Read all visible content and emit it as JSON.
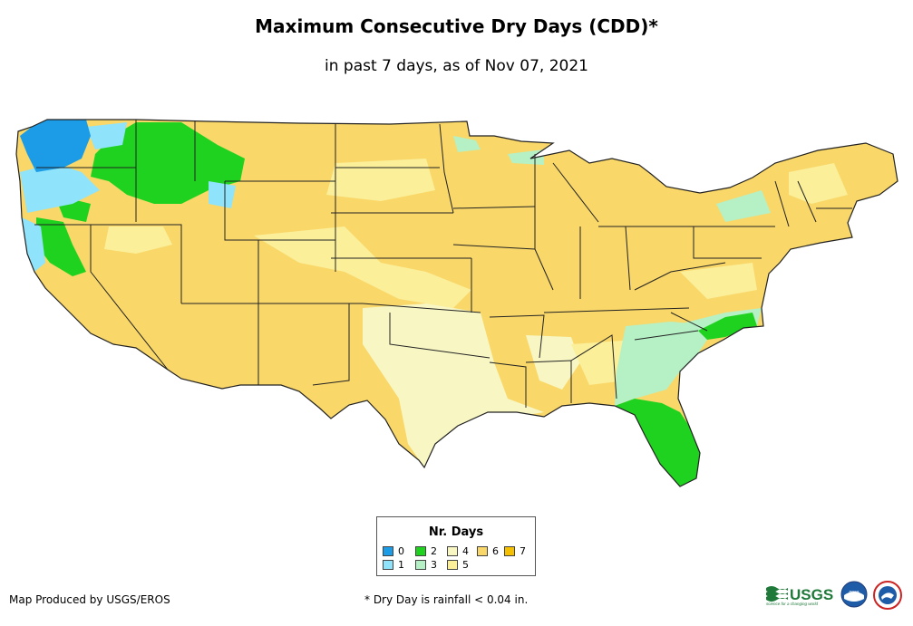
{
  "title": "Maximum Consecutive Dry Days (CDD)*",
  "subtitle": "in past 7 days, as of Nov 07, 2021",
  "legend": {
    "title": "Nr. Days",
    "items": [
      {
        "label": "0",
        "color": "#1c9be6"
      },
      {
        "label": "1",
        "color": "#8fe3fa"
      },
      {
        "label": "2",
        "color": "#1fd21f"
      },
      {
        "label": "3",
        "color": "#b5f1c5"
      },
      {
        "label": "4",
        "color": "#f8f7c4"
      },
      {
        "label": "5",
        "color": "#fbef9a"
      },
      {
        "label": "6",
        "color": "#f9d769"
      },
      {
        "label": "7",
        "color": "#f5c000"
      }
    ]
  },
  "footer": {
    "credit": "Map Produced by USGS/EROS",
    "note": "* Dry Day is rainfall < 0.04 in."
  },
  "logos": {
    "usgs_text": "USGS",
    "usgs_tagline": "science for a changing world",
    "noaa_text": "noaa",
    "nws_icon": "nws-logo-icon"
  }
}
